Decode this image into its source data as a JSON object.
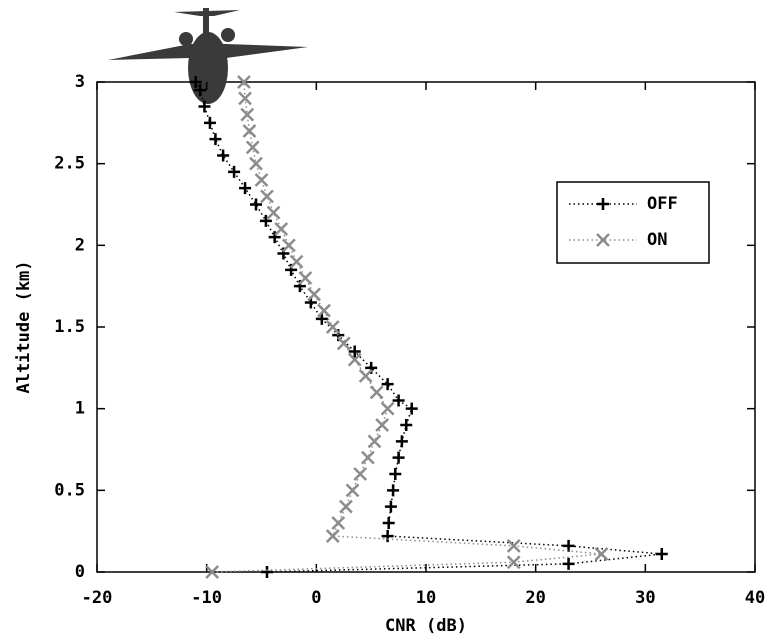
{
  "chart_data": {
    "type": "line",
    "xlabel": "CNR (dB)",
    "ylabel": "Altitude (km)",
    "xlim": [
      -20,
      40
    ],
    "xticks": [
      -20,
      -10,
      0,
      10,
      20,
      30,
      40
    ],
    "ylim": [
      0,
      3
    ],
    "yticks": [
      0,
      0.5,
      1,
      1.5,
      2,
      2.5,
      3
    ],
    "legend": "upper right",
    "series": [
      {
        "name": "OFF",
        "color": "#000000",
        "marker": "+",
        "x": [
          -4.5,
          23,
          31.5,
          23,
          6.5,
          6.6,
          6.8,
          7.0,
          7.2,
          7.5,
          7.8,
          8.2,
          8.7,
          7.5,
          6.5,
          5,
          3.5,
          2,
          0.5,
          -0.5,
          -1.5,
          -2.3,
          -3,
          -3.8,
          -4.6,
          -5.5,
          -6.5,
          -7.5,
          -8.5,
          -9.2,
          -9.7,
          -10.2,
          -10.6,
          -11
        ],
        "values": [
          0,
          0.05,
          0.11,
          0.16,
          0.22,
          0.3,
          0.4,
          0.5,
          0.6,
          0.7,
          0.8,
          0.9,
          1.0,
          1.05,
          1.15,
          1.25,
          1.35,
          1.45,
          1.55,
          1.65,
          1.75,
          1.85,
          1.95,
          2.05,
          2.15,
          2.25,
          2.35,
          2.45,
          2.55,
          2.65,
          2.75,
          2.85,
          2.95,
          3.0
        ]
      },
      {
        "name": "ON",
        "color": "#8c8c8c",
        "marker": "x",
        "x": [
          -9.5,
          18,
          26,
          18,
          1.5,
          2,
          2.7,
          3.3,
          4,
          4.7,
          5.3,
          6,
          6.5,
          5.5,
          4.5,
          3.5,
          2.5,
          1.5,
          0.7,
          -0.2,
          -1,
          -1.8,
          -2.5,
          -3.2,
          -3.9,
          -4.5,
          -5,
          -5.5,
          -5.8,
          -6.1,
          -6.3,
          -6.5,
          -6.6
        ],
        "values": [
          0,
          0.06,
          0.11,
          0.16,
          0.22,
          0.3,
          0.4,
          0.5,
          0.6,
          0.7,
          0.8,
          0.9,
          1.0,
          1.1,
          1.2,
          1.3,
          1.4,
          1.5,
          1.6,
          1.7,
          1.8,
          1.9,
          2.0,
          2.1,
          2.2,
          2.3,
          2.4,
          2.5,
          2.6,
          2.7,
          2.8,
          2.9,
          3.0
        ]
      }
    ]
  }
}
